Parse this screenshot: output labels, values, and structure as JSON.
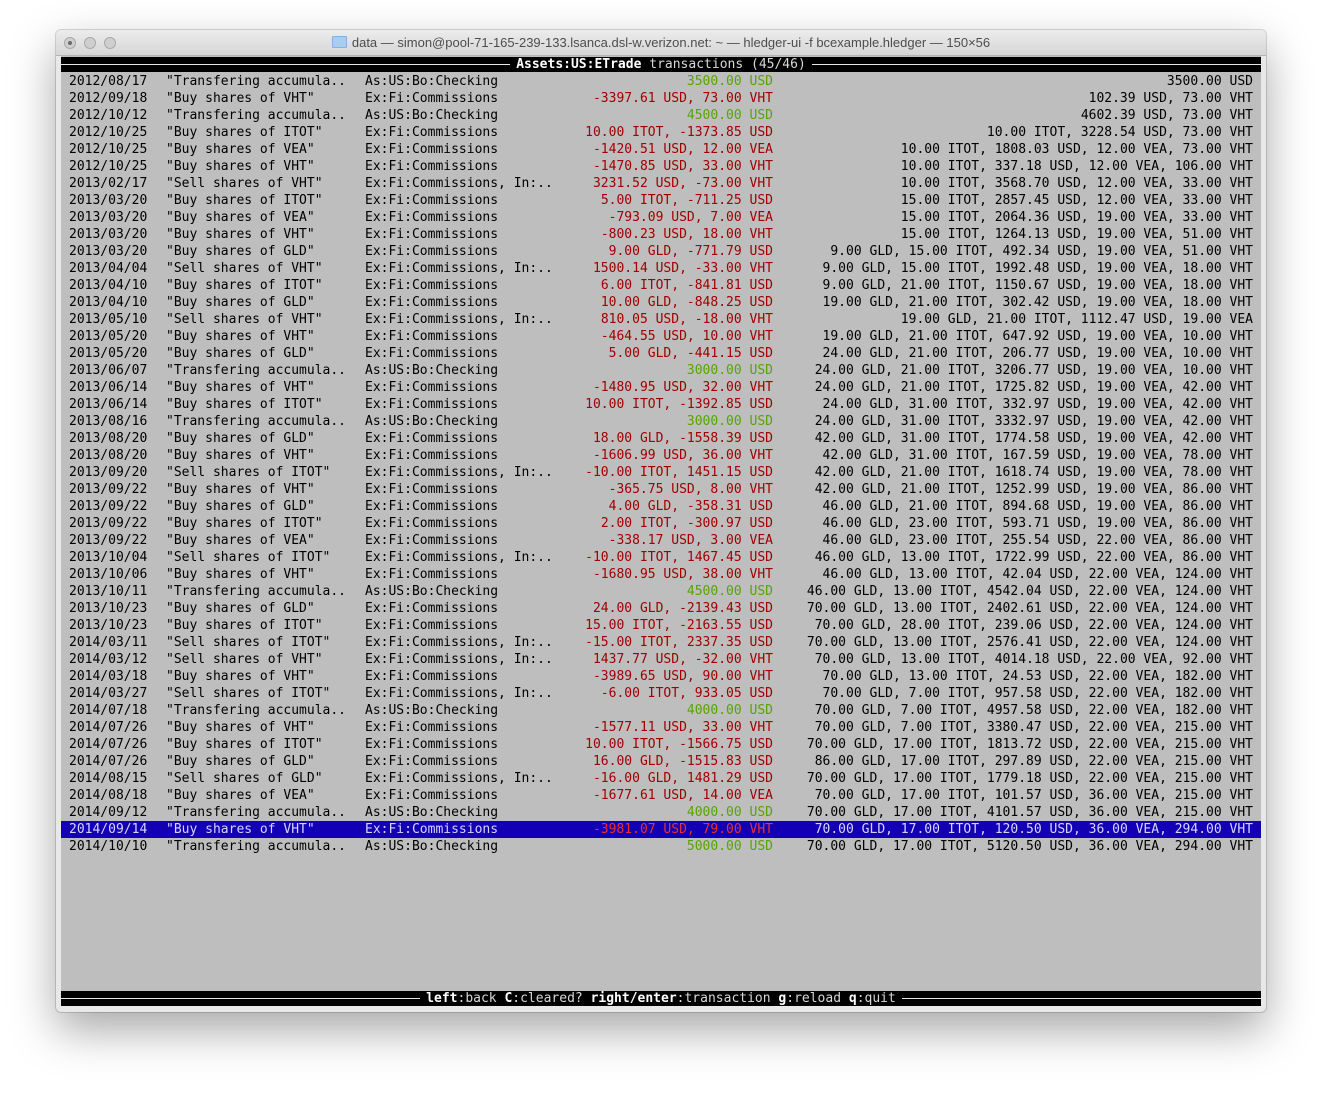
{
  "window": {
    "title": "data — simon@pool-71-165-239-133.lsanca.dsl-w.verizon.net: ~ — hledger-ui -f bcexample.hledger — 150×56"
  },
  "header": {
    "account": "Assets:US:ETrade",
    "label": "transactions",
    "position": "(45/46)"
  },
  "colors": {
    "positive": "#58a400",
    "negative": "#a00000",
    "selection": "#1400b4",
    "background": "#bebebe"
  },
  "selected_index": 44,
  "rows": [
    [
      "2012/08/17",
      "\"Transfering accumula..",
      "As:US:Bo:Checking",
      "3500.00 USD",
      "green",
      "3500.00 USD"
    ],
    [
      "2012/09/18",
      "\"Buy shares of VHT\"",
      "Ex:Fi:Commissions",
      "-3397.61 USD, 73.00 VHT",
      "red",
      "102.39 USD, 73.00 VHT"
    ],
    [
      "2012/10/12",
      "\"Transfering accumula..",
      "As:US:Bo:Checking",
      "4500.00 USD",
      "green",
      "4602.39 USD, 73.00 VHT"
    ],
    [
      "2012/10/25",
      "\"Buy shares of ITOT\"",
      "Ex:Fi:Commissions",
      "10.00 ITOT, -1373.85 USD",
      "red",
      "10.00 ITOT, 3228.54 USD, 73.00 VHT"
    ],
    [
      "2012/10/25",
      "\"Buy shares of VEA\"",
      "Ex:Fi:Commissions",
      "-1420.51 USD, 12.00 VEA",
      "red",
      "10.00 ITOT, 1808.03 USD, 12.00 VEA, 73.00 VHT"
    ],
    [
      "2012/10/25",
      "\"Buy shares of VHT\"",
      "Ex:Fi:Commissions",
      "-1470.85 USD, 33.00 VHT",
      "red",
      "10.00 ITOT, 337.18 USD, 12.00 VEA, 106.00 VHT"
    ],
    [
      "2013/02/17",
      "\"Sell shares of VHT\"",
      "Ex:Fi:Commissions, In:..",
      "3231.52 USD, -73.00 VHT",
      "red",
      "10.00 ITOT, 3568.70 USD, 12.00 VEA, 33.00 VHT"
    ],
    [
      "2013/03/20",
      "\"Buy shares of ITOT\"",
      "Ex:Fi:Commissions",
      "5.00 ITOT, -711.25 USD",
      "red",
      "15.00 ITOT, 2857.45 USD, 12.00 VEA, 33.00 VHT"
    ],
    [
      "2013/03/20",
      "\"Buy shares of VEA\"",
      "Ex:Fi:Commissions",
      "-793.09 USD, 7.00 VEA",
      "red",
      "15.00 ITOT, 2064.36 USD, 19.00 VEA, 33.00 VHT"
    ],
    [
      "2013/03/20",
      "\"Buy shares of VHT\"",
      "Ex:Fi:Commissions",
      "-800.23 USD, 18.00 VHT",
      "red",
      "15.00 ITOT, 1264.13 USD, 19.00 VEA, 51.00 VHT"
    ],
    [
      "2013/03/20",
      "\"Buy shares of GLD\"",
      "Ex:Fi:Commissions",
      "9.00 GLD, -771.79 USD",
      "red",
      "9.00 GLD, 15.00 ITOT, 492.34 USD, 19.00 VEA, 51.00 VHT"
    ],
    [
      "2013/04/04",
      "\"Sell shares of VHT\"",
      "Ex:Fi:Commissions, In:..",
      "1500.14 USD, -33.00 VHT",
      "red",
      "9.00 GLD, 15.00 ITOT, 1992.48 USD, 19.00 VEA, 18.00 VHT"
    ],
    [
      "2013/04/10",
      "\"Buy shares of ITOT\"",
      "Ex:Fi:Commissions",
      "6.00 ITOT, -841.81 USD",
      "red",
      "9.00 GLD, 21.00 ITOT, 1150.67 USD, 19.00 VEA, 18.00 VHT"
    ],
    [
      "2013/04/10",
      "\"Buy shares of GLD\"",
      "Ex:Fi:Commissions",
      "10.00 GLD, -848.25 USD",
      "red",
      "19.00 GLD, 21.00 ITOT, 302.42 USD, 19.00 VEA, 18.00 VHT"
    ],
    [
      "2013/05/10",
      "\"Sell shares of VHT\"",
      "Ex:Fi:Commissions, In:..",
      "810.05 USD, -18.00 VHT",
      "red",
      "19.00 GLD, 21.00 ITOT, 1112.47 USD, 19.00 VEA"
    ],
    [
      "2013/05/20",
      "\"Buy shares of VHT\"",
      "Ex:Fi:Commissions",
      "-464.55 USD, 10.00 VHT",
      "red",
      "19.00 GLD, 21.00 ITOT, 647.92 USD, 19.00 VEA, 10.00 VHT"
    ],
    [
      "2013/05/20",
      "\"Buy shares of GLD\"",
      "Ex:Fi:Commissions",
      "5.00 GLD, -441.15 USD",
      "red",
      "24.00 GLD, 21.00 ITOT, 206.77 USD, 19.00 VEA, 10.00 VHT"
    ],
    [
      "2013/06/07",
      "\"Transfering accumula..",
      "As:US:Bo:Checking",
      "3000.00 USD",
      "green",
      "24.00 GLD, 21.00 ITOT, 3206.77 USD, 19.00 VEA, 10.00 VHT"
    ],
    [
      "2013/06/14",
      "\"Buy shares of VHT\"",
      "Ex:Fi:Commissions",
      "-1480.95 USD, 32.00 VHT",
      "red",
      "24.00 GLD, 21.00 ITOT, 1725.82 USD, 19.00 VEA, 42.00 VHT"
    ],
    [
      "2013/06/14",
      "\"Buy shares of ITOT\"",
      "Ex:Fi:Commissions",
      "10.00 ITOT, -1392.85 USD",
      "red",
      "24.00 GLD, 31.00 ITOT, 332.97 USD, 19.00 VEA, 42.00 VHT"
    ],
    [
      "2013/08/16",
      "\"Transfering accumula..",
      "As:US:Bo:Checking",
      "3000.00 USD",
      "green",
      "24.00 GLD, 31.00 ITOT, 3332.97 USD, 19.00 VEA, 42.00 VHT"
    ],
    [
      "2013/08/20",
      "\"Buy shares of GLD\"",
      "Ex:Fi:Commissions",
      "18.00 GLD, -1558.39 USD",
      "red",
      "42.00 GLD, 31.00 ITOT, 1774.58 USD, 19.00 VEA, 42.00 VHT"
    ],
    [
      "2013/08/20",
      "\"Buy shares of VHT\"",
      "Ex:Fi:Commissions",
      "-1606.99 USD, 36.00 VHT",
      "red",
      "42.00 GLD, 31.00 ITOT, 167.59 USD, 19.00 VEA, 78.00 VHT"
    ],
    [
      "2013/09/20",
      "\"Sell shares of ITOT\"",
      "Ex:Fi:Commissions, In:..",
      "-10.00 ITOT, 1451.15 USD",
      "red",
      "42.00 GLD, 21.00 ITOT, 1618.74 USD, 19.00 VEA, 78.00 VHT"
    ],
    [
      "2013/09/22",
      "\"Buy shares of VHT\"",
      "Ex:Fi:Commissions",
      "-365.75 USD, 8.00 VHT",
      "red",
      "42.00 GLD, 21.00 ITOT, 1252.99 USD, 19.00 VEA, 86.00 VHT"
    ],
    [
      "2013/09/22",
      "\"Buy shares of GLD\"",
      "Ex:Fi:Commissions",
      "4.00 GLD, -358.31 USD",
      "red",
      "46.00 GLD, 21.00 ITOT, 894.68 USD, 19.00 VEA, 86.00 VHT"
    ],
    [
      "2013/09/22",
      "\"Buy shares of ITOT\"",
      "Ex:Fi:Commissions",
      "2.00 ITOT, -300.97 USD",
      "red",
      "46.00 GLD, 23.00 ITOT, 593.71 USD, 19.00 VEA, 86.00 VHT"
    ],
    [
      "2013/09/22",
      "\"Buy shares of VEA\"",
      "Ex:Fi:Commissions",
      "-338.17 USD, 3.00 VEA",
      "red",
      "46.00 GLD, 23.00 ITOT, 255.54 USD, 22.00 VEA, 86.00 VHT"
    ],
    [
      "2013/10/04",
      "\"Sell shares of ITOT\"",
      "Ex:Fi:Commissions, In:..",
      "-10.00 ITOT, 1467.45 USD",
      "red",
      "46.00 GLD, 13.00 ITOT, 1722.99 USD, 22.00 VEA, 86.00 VHT"
    ],
    [
      "2013/10/06",
      "\"Buy shares of VHT\"",
      "Ex:Fi:Commissions",
      "-1680.95 USD, 38.00 VHT",
      "red",
      "46.00 GLD, 13.00 ITOT, 42.04 USD, 22.00 VEA, 124.00 VHT"
    ],
    [
      "2013/10/11",
      "\"Transfering accumula..",
      "As:US:Bo:Checking",
      "4500.00 USD",
      "green",
      "46.00 GLD, 13.00 ITOT, 4542.04 USD, 22.00 VEA, 124.00 VHT"
    ],
    [
      "2013/10/23",
      "\"Buy shares of GLD\"",
      "Ex:Fi:Commissions",
      "24.00 GLD, -2139.43 USD",
      "red",
      "70.00 GLD, 13.00 ITOT, 2402.61 USD, 22.00 VEA, 124.00 VHT"
    ],
    [
      "2013/10/23",
      "\"Buy shares of ITOT\"",
      "Ex:Fi:Commissions",
      "15.00 ITOT, -2163.55 USD",
      "red",
      "70.00 GLD, 28.00 ITOT, 239.06 USD, 22.00 VEA, 124.00 VHT"
    ],
    [
      "2014/03/11",
      "\"Sell shares of ITOT\"",
      "Ex:Fi:Commissions, In:..",
      "-15.00 ITOT, 2337.35 USD",
      "red",
      "70.00 GLD, 13.00 ITOT, 2576.41 USD, 22.00 VEA, 124.00 VHT"
    ],
    [
      "2014/03/12",
      "\"Sell shares of VHT\"",
      "Ex:Fi:Commissions, In:..",
      "1437.77 USD, -32.00 VHT",
      "red",
      "70.00 GLD, 13.00 ITOT, 4014.18 USD, 22.00 VEA, 92.00 VHT"
    ],
    [
      "2014/03/18",
      "\"Buy shares of VHT\"",
      "Ex:Fi:Commissions",
      "-3989.65 USD, 90.00 VHT",
      "red",
      "70.00 GLD, 13.00 ITOT, 24.53 USD, 22.00 VEA, 182.00 VHT"
    ],
    [
      "2014/03/27",
      "\"Sell shares of ITOT\"",
      "Ex:Fi:Commissions, In:..",
      "-6.00 ITOT, 933.05 USD",
      "red",
      "70.00 GLD, 7.00 ITOT, 957.58 USD, 22.00 VEA, 182.00 VHT"
    ],
    [
      "2014/07/18",
      "\"Transfering accumula..",
      "As:US:Bo:Checking",
      "4000.00 USD",
      "green",
      "70.00 GLD, 7.00 ITOT, 4957.58 USD, 22.00 VEA, 182.00 VHT"
    ],
    [
      "2014/07/26",
      "\"Buy shares of VHT\"",
      "Ex:Fi:Commissions",
      "-1577.11 USD, 33.00 VHT",
      "red",
      "70.00 GLD, 7.00 ITOT, 3380.47 USD, 22.00 VEA, 215.00 VHT"
    ],
    [
      "2014/07/26",
      "\"Buy shares of ITOT\"",
      "Ex:Fi:Commissions",
      "10.00 ITOT, -1566.75 USD",
      "red",
      "70.00 GLD, 17.00 ITOT, 1813.72 USD, 22.00 VEA, 215.00 VHT"
    ],
    [
      "2014/07/26",
      "\"Buy shares of GLD\"",
      "Ex:Fi:Commissions",
      "16.00 GLD, -1515.83 USD",
      "red",
      "86.00 GLD, 17.00 ITOT, 297.89 USD, 22.00 VEA, 215.00 VHT"
    ],
    [
      "2014/08/15",
      "\"Sell shares of GLD\"",
      "Ex:Fi:Commissions, In:..",
      "-16.00 GLD, 1481.29 USD",
      "red",
      "70.00 GLD, 17.00 ITOT, 1779.18 USD, 22.00 VEA, 215.00 VHT"
    ],
    [
      "2014/08/18",
      "\"Buy shares of VEA\"",
      "Ex:Fi:Commissions",
      "-1677.61 USD, 14.00 VEA",
      "red",
      "70.00 GLD, 17.00 ITOT, 101.57 USD, 36.00 VEA, 215.00 VHT"
    ],
    [
      "2014/09/12",
      "\"Transfering accumula..",
      "As:US:Bo:Checking",
      "4000.00 USD",
      "green",
      "70.00 GLD, 17.00 ITOT, 4101.57 USD, 36.00 VEA, 215.00 VHT"
    ],
    [
      "2014/09/14",
      "\"Buy shares of VHT\"",
      "Ex:Fi:Commissions",
      "-3981.07 USD, 79.00 VHT",
      "red",
      "70.00 GLD, 17.00 ITOT, 120.50 USD, 36.00 VEA, 294.00 VHT"
    ],
    [
      "2014/10/10",
      "\"Transfering accumula..",
      "As:US:Bo:Checking",
      "5000.00 USD",
      "green",
      "70.00 GLD, 17.00 ITOT, 5120.50 USD, 36.00 VEA, 294.00 VHT"
    ]
  ],
  "footer": {
    "keys": [
      {
        "key": "left",
        "action": "back"
      },
      {
        "key": "C",
        "action": "cleared?"
      },
      {
        "key": "right/enter",
        "action": "transaction"
      },
      {
        "key": "g",
        "action": "reload"
      },
      {
        "key": "q",
        "action": "quit"
      }
    ]
  }
}
